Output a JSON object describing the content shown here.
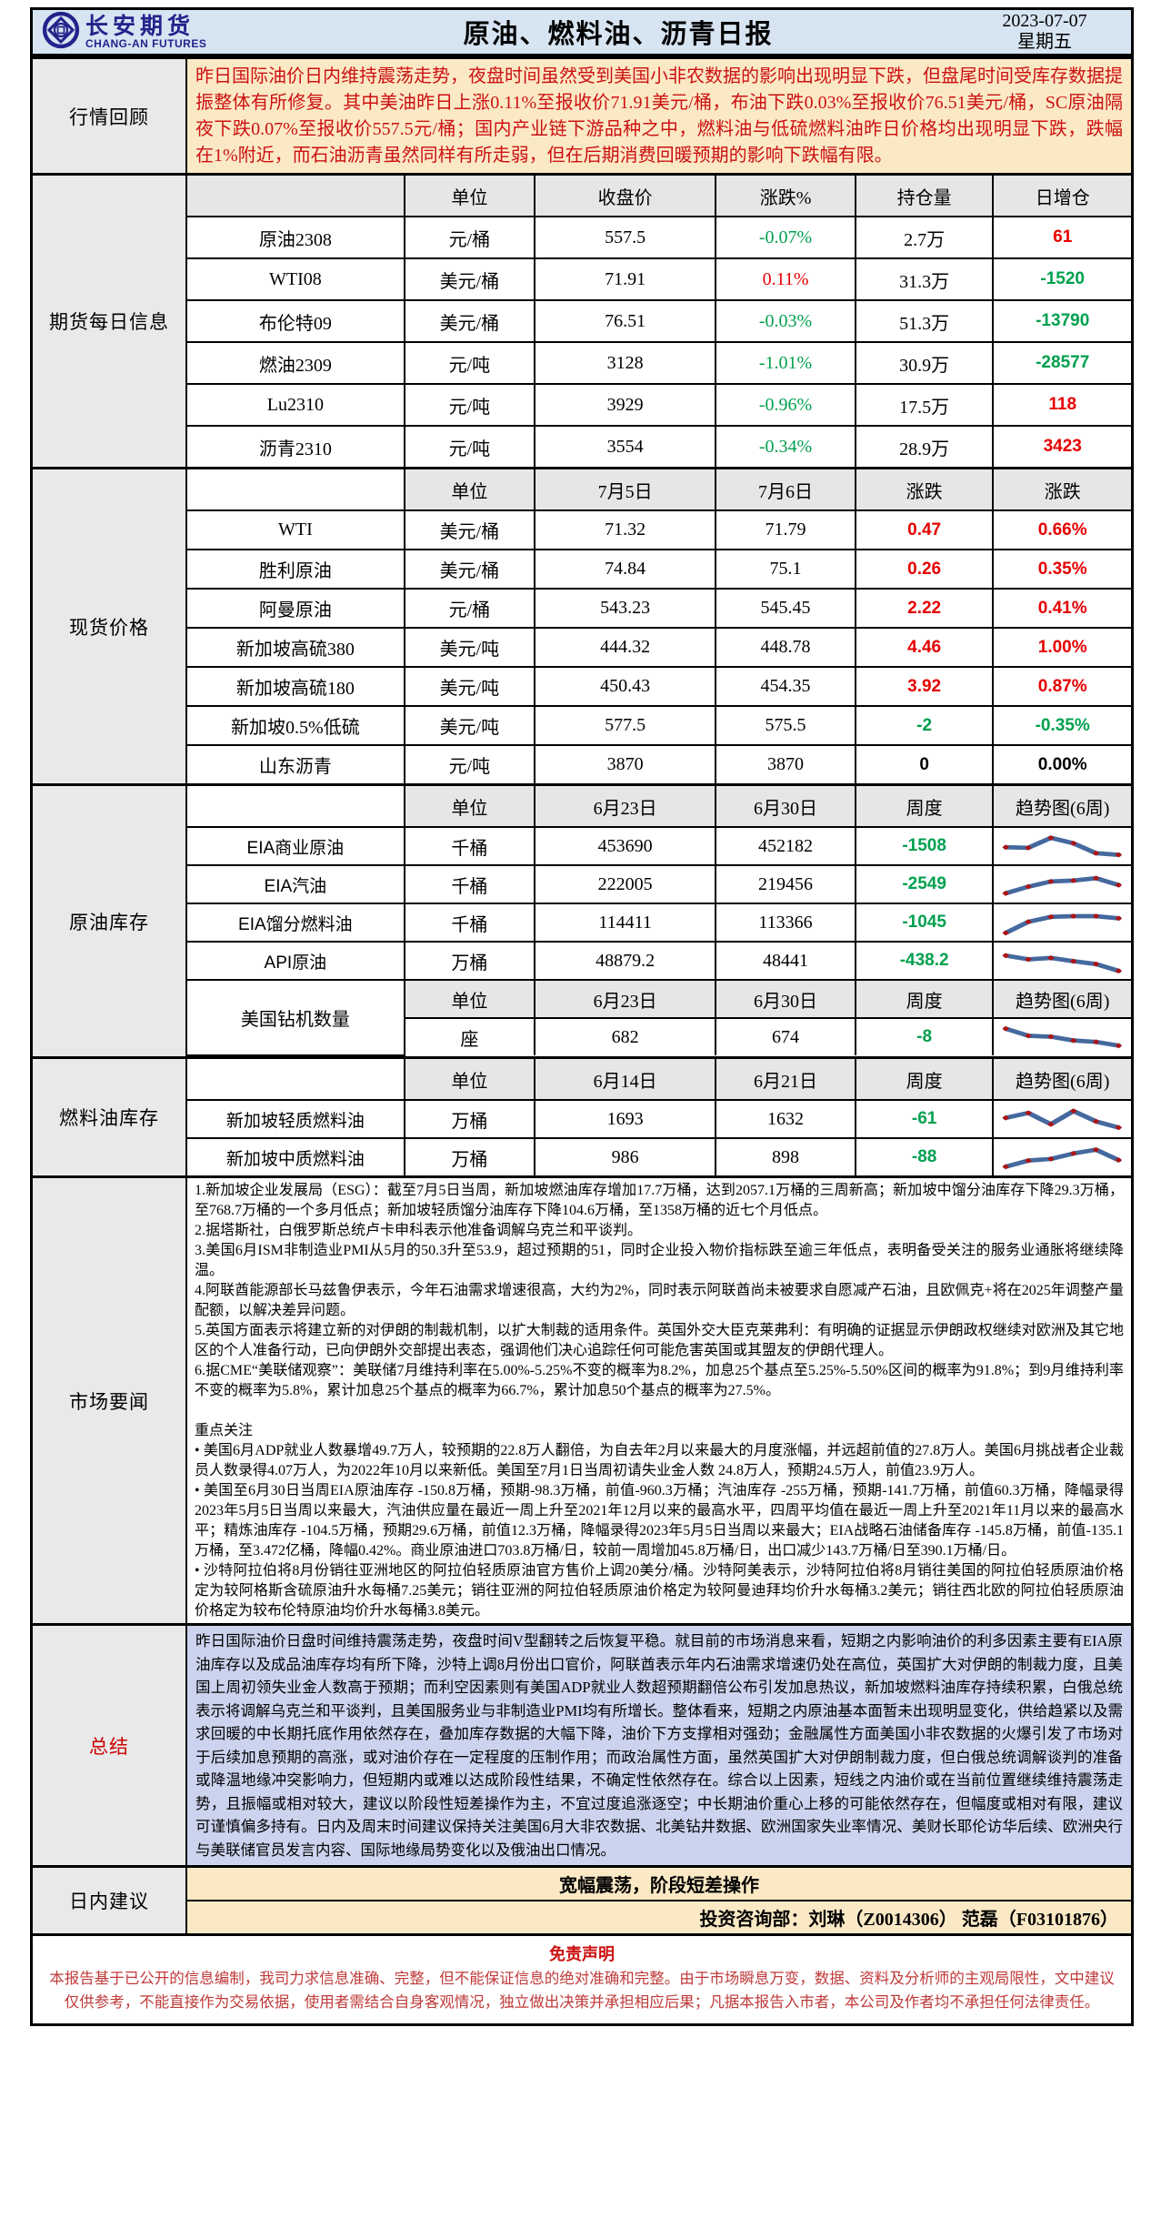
{
  "header": {
    "brand": "长安期货",
    "brand_en": "CHANG-AN FUTURES",
    "title": "原油、燃料油、沥青日报",
    "date": "2023-07-07",
    "weekday": "星期五"
  },
  "review": {
    "label": "行情回顾",
    "text": "昨日国际油价日内维持震荡走势，夜盘时间虽然受到美国小非农数据的影响出现明显下跌，但盘尾时间受库存数据提振整体有所修复。其中美油昨日上涨0.11%至报收价71.91美元/桶，布油下跌0.03%至报收价76.51美元/桶，SC原油隔夜下跌0.07%至报收价557.5元/桶；国内产业链下游品种之中，燃料油与低硫燃料油昨日价格均出现明显下跌，跌幅在1%附近，而石油沥青虽然同样有所走弱，但在后期消费回暖预期的影响下跌幅有限。"
  },
  "futures": {
    "label": "期货每日信息",
    "headers": [
      "单位",
      "收盘价",
      "涨跌%",
      "持仓量",
      "日增仓"
    ],
    "rows": [
      {
        "name": "原油2308",
        "unit": "元/桶",
        "close": "557.5",
        "chg": "-0.07%",
        "oi": "2.7万",
        "oichg": "61"
      },
      {
        "name": "WTI08",
        "unit": "美元/桶",
        "close": "71.91",
        "chg": "0.11%",
        "oi": "31.3万",
        "oichg": "-1520"
      },
      {
        "name": "布伦特09",
        "unit": "美元/桶",
        "close": "76.51",
        "chg": "-0.03%",
        "oi": "51.3万",
        "oichg": "-13790"
      },
      {
        "name": "燃油2309",
        "unit": "元/吨",
        "close": "3128",
        "chg": "-1.01%",
        "oi": "30.9万",
        "oichg": "-28577"
      },
      {
        "name": "Lu2310",
        "unit": "元/吨",
        "close": "3929",
        "chg": "-0.96%",
        "oi": "17.5万",
        "oichg": "118"
      },
      {
        "name": "沥青2310",
        "unit": "元/吨",
        "close": "3554",
        "chg": "-0.34%",
        "oi": "28.9万",
        "oichg": "3423"
      }
    ]
  },
  "spot": {
    "label": "现货价格",
    "headers": [
      "单位",
      "7月5日",
      "7月6日",
      "涨跌",
      "涨跌"
    ],
    "rows": [
      {
        "name": "WTI",
        "unit": "美元/桶",
        "d1": "71.32",
        "d2": "71.79",
        "chg": "0.47",
        "pct": "0.66%"
      },
      {
        "name": "胜利原油",
        "unit": "美元/桶",
        "d1": "74.84",
        "d2": "75.1",
        "chg": "0.26",
        "pct": "0.35%"
      },
      {
        "name": "阿曼原油",
        "unit": "元/桶",
        "d1": "543.23",
        "d2": "545.45",
        "chg": "2.22",
        "pct": "0.41%"
      },
      {
        "name": "新加坡高硫380",
        "unit": "美元/吨",
        "d1": "444.32",
        "d2": "448.78",
        "chg": "4.46",
        "pct": "1.00%"
      },
      {
        "name": "新加坡高硫180",
        "unit": "美元/吨",
        "d1": "450.43",
        "d2": "454.35",
        "chg": "3.92",
        "pct": "0.87%"
      },
      {
        "name": "新加坡0.5%低硫",
        "unit": "美元/吨",
        "d1": "577.5",
        "d2": "575.5",
        "chg": "-2",
        "pct": "-0.35%"
      },
      {
        "name": "山东沥青",
        "unit": "元/吨",
        "d1": "3870",
        "d2": "3870",
        "chg": "0",
        "pct": "0.00%"
      }
    ]
  },
  "crude_inv": {
    "label": "原油库存",
    "headers": [
      "单位",
      "6月23日",
      "6月30日",
      "周度",
      "趋势图(6周)"
    ],
    "rows": [
      {
        "name": "EIA商业原油",
        "unit": "千桶",
        "d1": "453690",
        "d2": "452182",
        "chg": "-1508",
        "trend": [
          0.45,
          0.43,
          0.85,
          0.62,
          0.2,
          0.13
        ]
      },
      {
        "name": "EIA汽油",
        "unit": "千桶",
        "d1": "222005",
        "d2": "219456",
        "chg": "-2549",
        "trend": [
          0.12,
          0.4,
          0.62,
          0.66,
          0.76,
          0.47
        ]
      },
      {
        "name": "EIA馏分燃料油",
        "unit": "千桶",
        "d1": "114411",
        "d2": "113366",
        "chg": "-1045",
        "trend": [
          0.06,
          0.53,
          0.74,
          0.77,
          0.77,
          0.68
        ]
      },
      {
        "name": "API原油",
        "unit": "万桶",
        "d1": "48879.2",
        "d2": "48441",
        "chg": "-438.2",
        "trend": [
          0.72,
          0.56,
          0.62,
          0.48,
          0.36,
          0.07
        ]
      }
    ],
    "drill": {
      "name": "美国钻机数量",
      "headers": [
        "单位",
        "6月23日",
        "6月30日",
        "周度",
        "趋势图(6周)"
      ],
      "row": {
        "unit": "座",
        "d1": "682",
        "d2": "674",
        "chg": "-8",
        "trend": [
          0.86,
          0.56,
          0.52,
          0.36,
          0.3,
          0.14
        ]
      }
    }
  },
  "fuel_inv": {
    "label": "燃料油库存",
    "headers": [
      "单位",
      "6月14日",
      "6月21日",
      "周度",
      "趋势图(6周)"
    ],
    "rows": [
      {
        "name": "新加坡轻质燃料油",
        "unit": "万桶",
        "d1": "1693",
        "d2": "1632",
        "chg": "-61",
        "trend": [
          0.55,
          0.76,
          0.28,
          0.84,
          0.4,
          0.14
        ]
      },
      {
        "name": "新加坡中质燃料油",
        "unit": "万桶",
        "d1": "986",
        "d2": "898",
        "chg": "-88",
        "trend": [
          0.1,
          0.36,
          0.43,
          0.66,
          0.82,
          0.38
        ]
      }
    ]
  },
  "news": {
    "label": "市场要闻",
    "items": [
      "1.新加坡企业发展局（ESG）：截至7月5日当周，新加坡燃油库存增加17.7万桶，达到2057.1万桶的三周新高；新加坡中馏分油库存下降29.3万桶，至768.7万桶的一个多月低点；新加坡轻质馏分油库存下降104.6万桶，至1358万桶的近七个月低点。",
      "2.据塔斯社，白俄罗斯总统卢卡申科表示他准备调解乌克兰和平谈判。",
      "3.美国6月ISM非制造业PMI从5月的50.3升至53.9，超过预期的51，同时企业投入物价指标跌至逾三年低点，表明备受关注的服务业通胀将继续降温。",
      "4.阿联酋能源部长马兹鲁伊表示，今年石油需求增速很高，大约为2%，同时表示阿联酋尚未被要求自愿减产石油，且欧佩克+将在2025年调整产量配额，以解决差异问题。",
      "5.英国方面表示将建立新的对伊朗的制裁机制，以扩大制裁的适用条件。英国外交大臣克莱弗利：有明确的证据显示伊朗政权继续对欧洲及其它地区的个人准备行动，已向伊朗外交部提出表态，强调他们决心追踪任何可能危害英国或其盟友的伊朗代理人。",
      "6.据CME“美联储观察”：美联储7月维持利率在5.00%-5.25%不变的概率为8.2%，加息25个基点至5.25%-5.50%区间的概率为91.8%；到9月维持利率不变的概率为5.8%，累计加息25个基点的概率为66.7%，累计加息50个基点的概率为27.5%。"
    ],
    "focus_title": "重点关注",
    "focus_items": [
      "• 美国6月ADP就业人数暴增49.7万人，较预期的22.8万人翻倍，为自去年2月以来最大的月度涨幅，并远超前值的27.8万人。美国6月挑战者企业裁员人数录得4.07万人，为2022年10月以来新低。美国至7月1日当周初请失业金人数 24.8万人，预期24.5万人，前值23.9万人。",
      "• 美国至6月30日当周EIA原油库存 -150.8万桶，预期-98.3万桶，前值-960.3万桶；汽油库存 -255万桶，预期-141.7万桶，前值60.3万桶，降幅录得2023年5月5日当周以来最大，汽油供应量在最近一周上升至2021年12月以来的最高水平，四周平均值在最近一周上升至2021年11月以来的最高水平；精炼油库存 -104.5万桶，预期29.6万桶，前值12.3万桶，降幅录得2023年5月5日当周以来最大；EIA战略石油储备库存 -145.8万桶，前值-135.1万桶，至3.472亿桶，降幅0.42%。商业原油进口703.8万桶/日，较前一周增加45.8万桶/日，出口减少143.7万桶/日至390.1万桶/日。",
      "• 沙特阿拉伯将8月份销往亚洲地区的阿拉伯轻质原油官方售价上调20美分/桶。沙特阿美表示，沙特阿拉伯将8月销往美国的阿拉伯轻质原油价格定为较阿格斯含硫原油升水每桶7.25美元；销往亚洲的阿拉伯轻质原油价格定为较阿曼迪拜均价升水每桶3.2美元；销往西北欧的阿拉伯轻质原油价格定为较布伦特原油均价升水每桶3.8美元。"
    ]
  },
  "summary": {
    "label": "总结",
    "text": "昨日国际油价日盘时间维持震荡走势，夜盘时间V型翻转之后恢复平稳。就目前的市场消息来看，短期之内影响油价的利多因素主要有EIA原油库存以及成品油库存均有所下降，沙特上调8月份出口官价，阿联酋表示年内石油需求增速仍处在高位，英国扩大对伊朗的制裁力度，且美国上周初领失业金人数高于预期；而利空因素则有美国ADP就业人数超预期翻倍公布引发加息热议，新加坡燃料油库存持续积累，白俄总统表示将调解乌克兰和平谈判，且美国服务业与非制造业PMI均有所增长。整体看来，短期之内原油基本面暂未出现明显变化，供给趋紧以及需求回暖的中长期托底作用依然存在，叠加库存数据的大幅下降，油价下方支撑相对强劲；金融属性方面美国小非农数据的火爆引发了市场对于后续加息预期的高涨，或对油价存在一定程度的压制作用；而政治属性方面，虽然英国扩大对伊朗制裁力度，但白俄总统调解谈判的准备或降温地缘冲突影响力，但短期内或难以达成阶段性结果，不确定性依然存在。综合以上因素，短线之内油价或在当前位置继续维持震荡走势，且振幅或相对较大，建议以阶段性短差操作为主，不宜过度追涨逐空；中长期油价重心上移的可能依然存在，但幅度或相对有限，建议可谨慎偏多持有。日内及周末时间建议保持关注美国6月大非农数据、北美钻井数据、欧洲国家失业率情况、美财长耶伦访华后续、欧洲央行与美联储官员发言内容、国际地缘局势变化以及俄油出口情况。"
  },
  "advice": {
    "label": "日内建议",
    "line1": "宽幅震荡，阶段短差操作",
    "line2": "投资咨询部：刘琳（Z0014306） 范磊（F03101876）"
  },
  "disclaimer": {
    "title": "免责声明",
    "text": "本报告基于已公开的信息编制，我司力求信息准确、完整，但不能保证信息的绝对准确和完整。由于市场瞬息万变，数据、资料及分析师的主观局限性，文中建议仅供参考，不能直接作为交易依据，使用者需结合自身客观情况，独立做出决策并承担相应后果；凡据本报告入市者，本公司及作者均不承担任何法律责任。"
  },
  "colors": {
    "up_red": "#e60000",
    "down_green": "#00a04e",
    "header_bg": "#d7e4f2",
    "review_bg": "#fbe9c5",
    "summary_bg": "#ccd3ee",
    "sparkline": "#44699e",
    "marker": "#b01313"
  }
}
